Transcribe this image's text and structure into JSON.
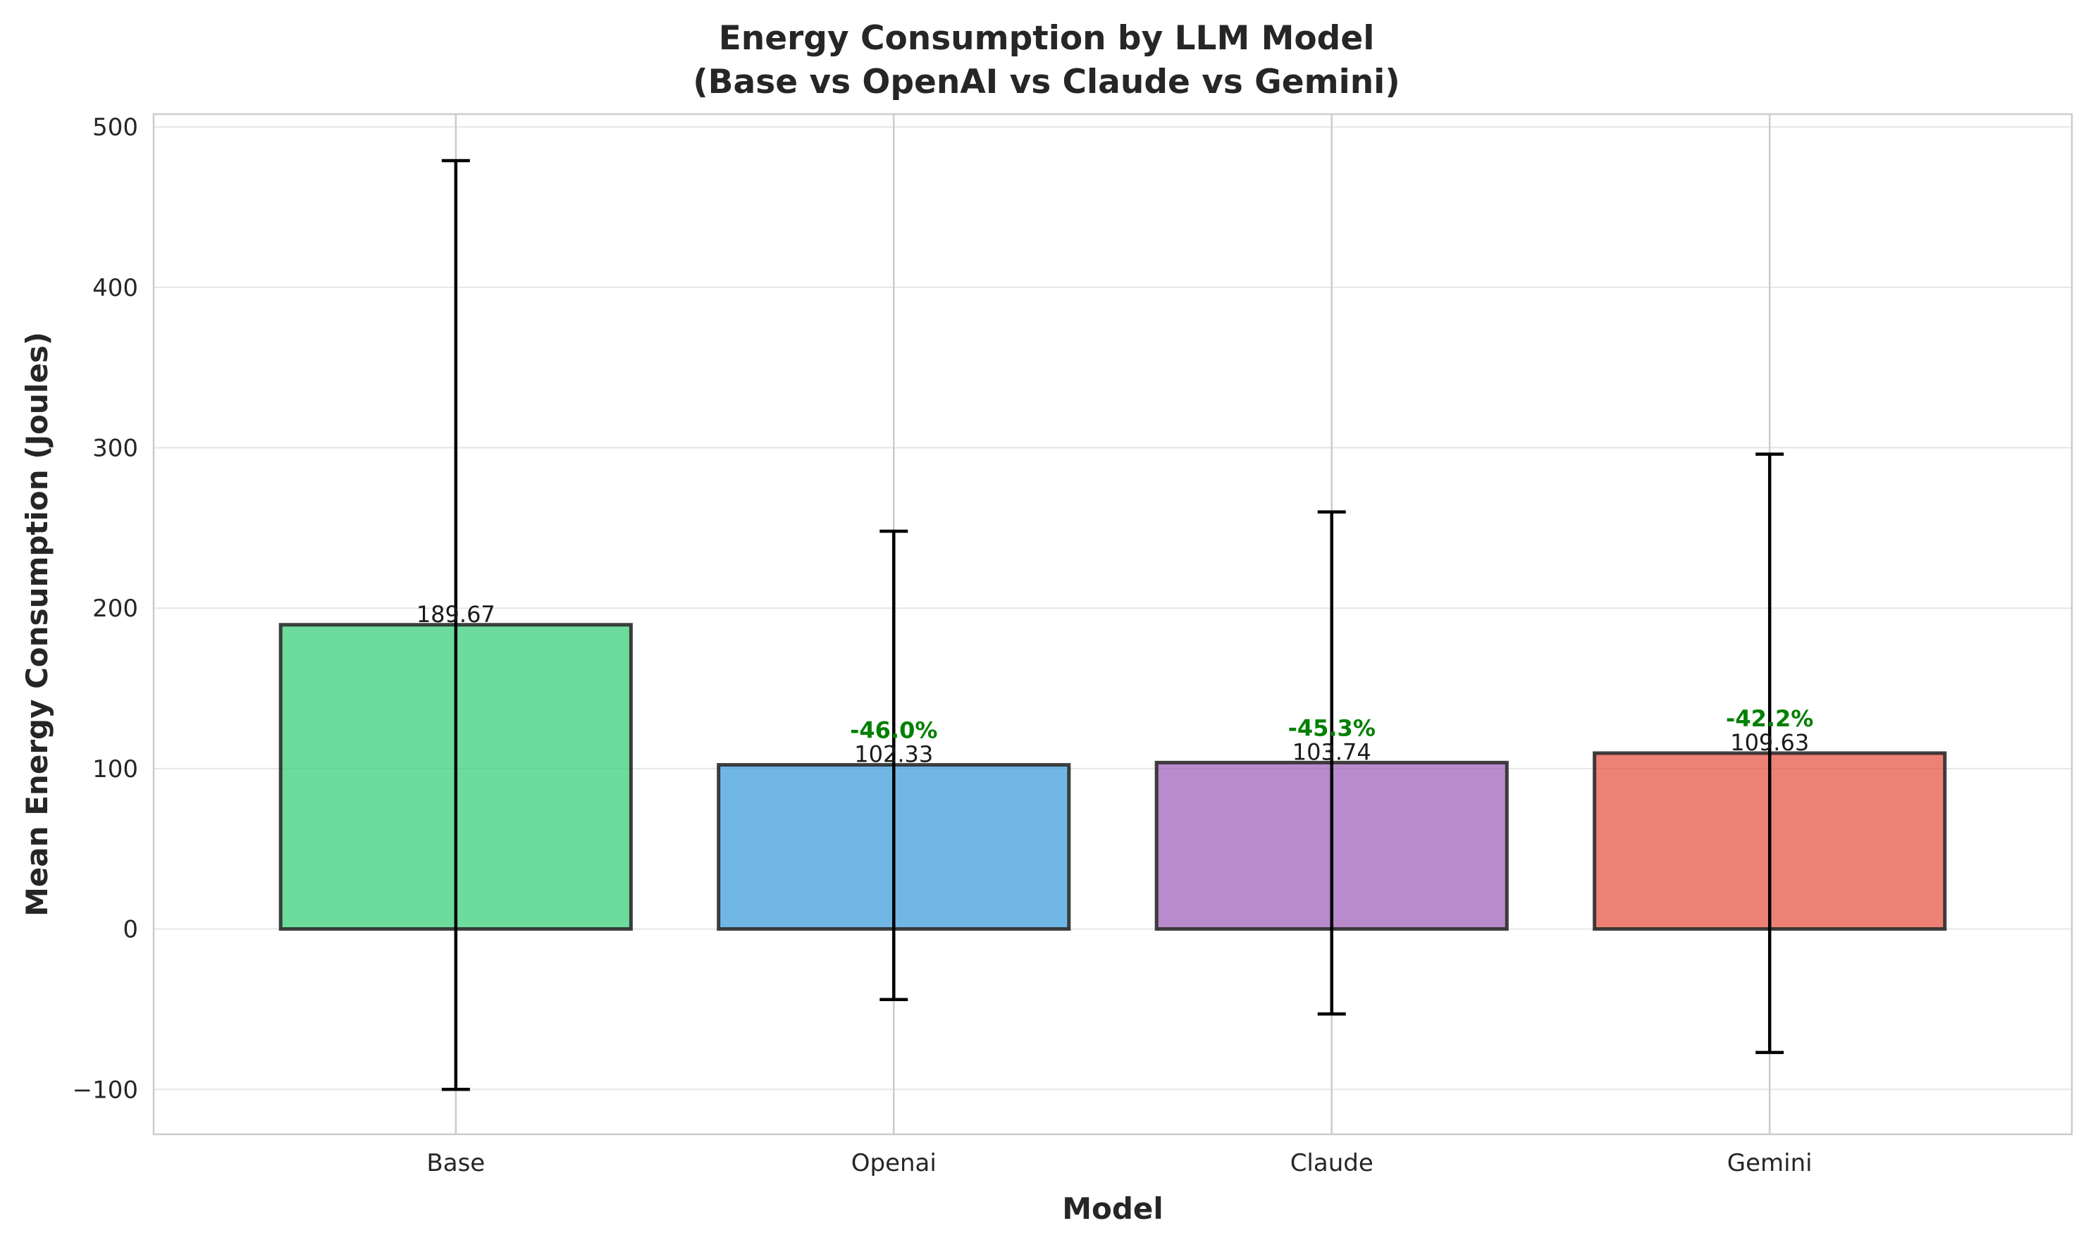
{
  "chart_data": {
    "type": "bar",
    "title": "Energy Consumption by LLM Model",
    "subtitle": "(Base vs OpenAI vs Claude vs Gemini)",
    "xlabel": "Model",
    "ylabel": "Mean Energy Consumption (Joules)",
    "ylim": [
      -128,
      508
    ],
    "yticks": [
      -100,
      0,
      100,
      200,
      300,
      400,
      500
    ],
    "ytick_labels": [
      "−100",
      "0",
      "100",
      "200",
      "300",
      "400",
      "500"
    ],
    "grid": true,
    "categories": [
      "Base",
      "Openai",
      "Claude",
      "Gemini"
    ],
    "values": [
      189.67,
      102.33,
      103.74,
      109.63
    ],
    "value_labels": [
      "189.67",
      "102.33",
      "103.74",
      "109.63"
    ],
    "error_bars": [
      {
        "low": -100,
        "high": 479
      },
      {
        "low": -44,
        "high": 248
      },
      {
        "low": -53,
        "high": 260
      },
      {
        "low": -77,
        "high": 296
      }
    ],
    "percent_change_labels": [
      "",
      "-46.0%",
      "-45.3%",
      "-42.2%"
    ],
    "colors": [
      "#2ecc71",
      "#3498db",
      "#9b59b6",
      "#e74c3c"
    ],
    "percent_color": "#008000"
  }
}
